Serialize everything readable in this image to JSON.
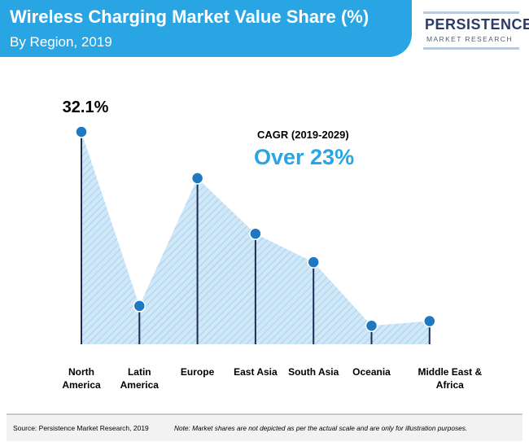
{
  "header": {
    "title": "Wireless Charging Market Value Share (%)",
    "subtitle": "By Region, 2019"
  },
  "logo": {
    "main": "PERSISTENCE",
    "sub": "MARKET RESEARCH"
  },
  "cagr": {
    "label": "CAGR (2019-2029)",
    "value": "Over 23%"
  },
  "chart_data": {
    "type": "area",
    "categories": [
      "North America",
      "Latin America",
      "Europe",
      "East Asia",
      "South Asia",
      "Oceania",
      "Middle East & Africa"
    ],
    "category_lines": [
      [
        "North",
        "America"
      ],
      [
        "Latin",
        "America"
      ],
      [
        "Europe"
      ],
      [
        "East Asia"
      ],
      [
        "South Asia"
      ],
      [
        "Oceania"
      ],
      [
        "Middle East &",
        "Africa"
      ]
    ],
    "series": [
      {
        "values": [
          32.1,
          5.8,
          25.1,
          16.7,
          12.4,
          2.8,
          3.5
        ]
      }
    ],
    "data_labels": [
      {
        "index": 0,
        "text": "32.1%"
      }
    ],
    "ylim": [
      0,
      32.1
    ],
    "grid": false,
    "colors": {
      "marker": "#1e78c2",
      "area": "#cfe7f7",
      "hatch": "#9ccbea",
      "stem": "#1f2d55"
    }
  },
  "footer": {
    "source": "Source: Persistence Market Research, 2019",
    "note": "Note: Market shares are not depicted as per the actual scale and are only for illustration purposes."
  }
}
